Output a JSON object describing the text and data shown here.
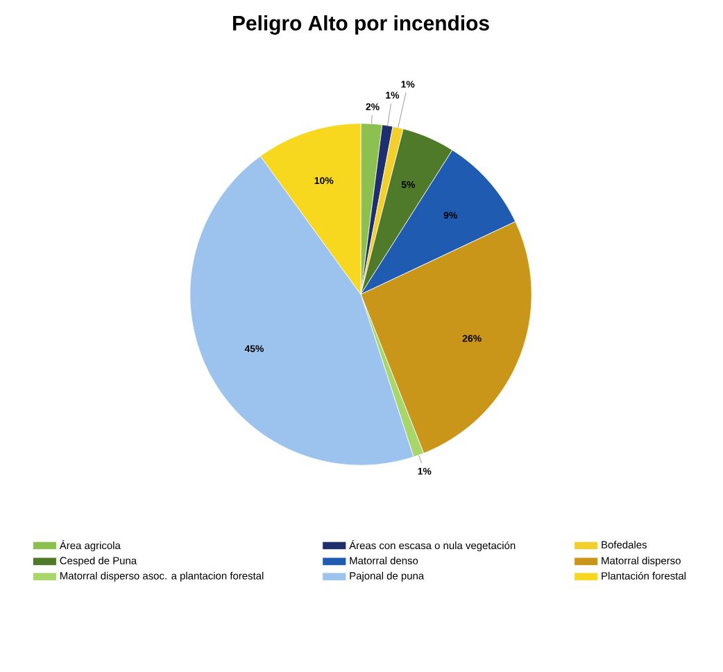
{
  "chart_data": {
    "type": "pie",
    "title": "Peligro Alto por incendios",
    "categories": [
      "Área agricola",
      "Áreas con escasa o nula vegetación",
      "Bofedales",
      "Cesped de Puna",
      "Matorral denso",
      "Matorral disperso",
      "Matorral disperso asoc. a plantacion forestal",
      "Pajonal de puna",
      "Plantación forestal"
    ],
    "values": [
      2,
      1,
      1,
      5,
      9,
      26,
      1,
      45,
      10
    ],
    "value_labels": [
      "2%",
      "1%",
      "1%",
      "5%",
      "9%",
      "26%",
      "1%",
      "45%",
      "10%"
    ],
    "colors": [
      "#8cc152",
      "#1f2f6e",
      "#f2cf2a",
      "#4e7a2a",
      "#1f5bb0",
      "#c9961a",
      "#a8d66a",
      "#9cc3ee",
      "#f7d81f"
    ],
    "legend": "bottom"
  }
}
